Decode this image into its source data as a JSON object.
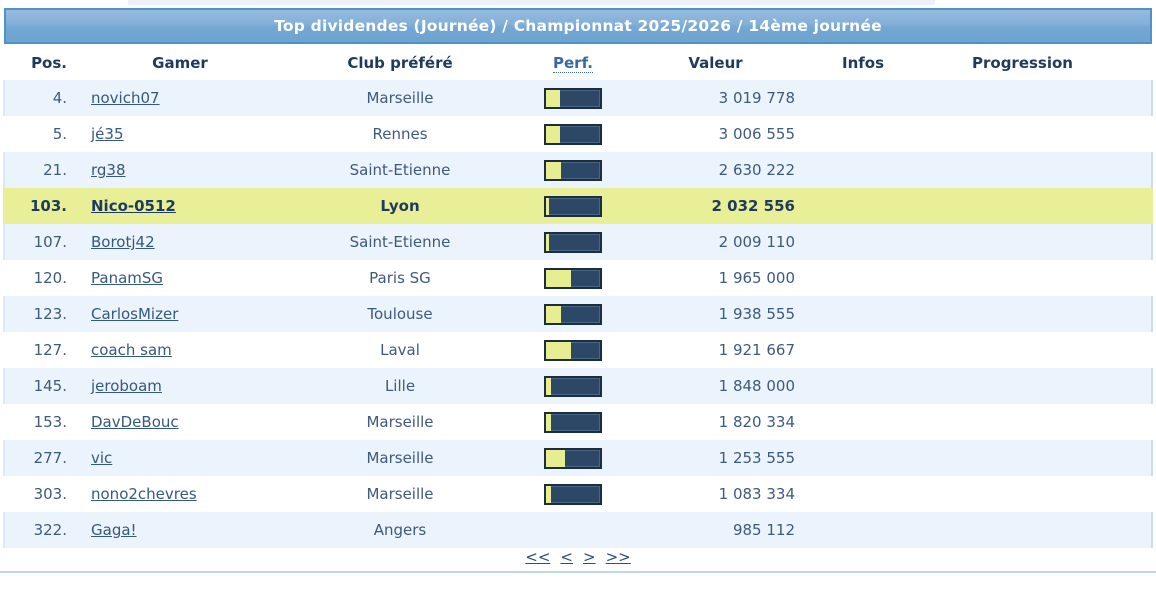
{
  "title_bar": {
    "text": "Top dividendes (Journée) / Championnat 2025/2026 / 14ème journée"
  },
  "table": {
    "columns": [
      "Pos.",
      "Gamer",
      "Club préféré",
      "Perf.",
      "Valeur",
      "Infos",
      "Progression"
    ],
    "rows": [
      {
        "pos": "4.",
        "gamer": "novich07",
        "club": "Marseille",
        "perf_percent": 25,
        "valeur": "3 019 778",
        "infos": "",
        "progression": "",
        "highlight": false
      },
      {
        "pos": "5.",
        "gamer": "jé35",
        "club": "Rennes",
        "perf_percent": 25,
        "valeur": "3 006 555",
        "infos": "",
        "progression": "",
        "highlight": false
      },
      {
        "pos": "21.",
        "gamer": "rg38",
        "club": "Saint-Etienne",
        "perf_percent": 28,
        "valeur": "2 630 222",
        "infos": "",
        "progression": "",
        "highlight": false
      },
      {
        "pos": "103.",
        "gamer": "Nico-0512",
        "club": "Lyon",
        "perf_percent": 5,
        "valeur": "2 032 556",
        "infos": "",
        "progression": "",
        "highlight": true
      },
      {
        "pos": "107.",
        "gamer": "Borotj42",
        "club": "Saint-Etienne",
        "perf_percent": 6,
        "valeur": "2 009 110",
        "infos": "",
        "progression": "",
        "highlight": false
      },
      {
        "pos": "120.",
        "gamer": "PanamSG",
        "club": "Paris SG",
        "perf_percent": 46,
        "valeur": "1 965 000",
        "infos": "",
        "progression": "",
        "highlight": false
      },
      {
        "pos": "123.",
        "gamer": "CarlosMizer",
        "club": "Toulouse",
        "perf_percent": 27,
        "valeur": "1 938 555",
        "infos": "",
        "progression": "",
        "highlight": false
      },
      {
        "pos": "127.",
        "gamer": "coach sam",
        "club": "Laval",
        "perf_percent": 46,
        "valeur": "1 921 667",
        "infos": "",
        "progression": "",
        "highlight": false
      },
      {
        "pos": "145.",
        "gamer": "jeroboam",
        "club": "Lille",
        "perf_percent": 9,
        "valeur": "1 848 000",
        "infos": "",
        "progression": "",
        "highlight": false
      },
      {
        "pos": "153.",
        "gamer": "DavDeBouc",
        "club": "Marseille",
        "perf_percent": 9,
        "valeur": "1 820 334",
        "infos": "",
        "progression": "",
        "highlight": false
      },
      {
        "pos": "277.",
        "gamer": "vic",
        "club": "Marseille",
        "perf_percent": 35,
        "valeur": "1 253 555",
        "infos": "",
        "progression": "",
        "highlight": false
      },
      {
        "pos": "303.",
        "gamer": "nono2chevres",
        "club": "Marseille",
        "perf_percent": 10,
        "valeur": "1 083 334",
        "infos": "",
        "progression": "",
        "highlight": false
      },
      {
        "pos": "322.",
        "gamer": "Gaga!",
        "club": "Angers",
        "perf_percent": null,
        "valeur": "985 112",
        "infos": "",
        "progression": "",
        "highlight": false
      }
    ]
  },
  "pagination": {
    "links": [
      {
        "name": "first",
        "label": "<<"
      },
      {
        "name": "prev",
        "label": "<"
      },
      {
        "name": "next",
        "label": ">"
      },
      {
        "name": "last",
        "label": ">>"
      }
    ]
  },
  "colors": {
    "title_border": "#4e92c8",
    "title_gradient_top": "#96bbde",
    "title_gradient_bottom": "#6ea4d1",
    "header_text": "#1e3a5f",
    "row_stripe": "#ebf3fc",
    "row_highlight": "#e8ef96",
    "body_text": "#3e5a7d",
    "link_text": "#36597f",
    "bar_border": "#1d2d40",
    "bar_fill_dark": "#2c4866",
    "bar_fill_yellow": "#e7ee92",
    "bottom_rule": "#bfd8ea"
  }
}
